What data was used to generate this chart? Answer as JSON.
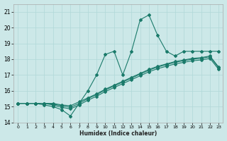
{
  "xlabel": "Humidex (Indice chaleur)",
  "bg_color": "#cce8e8",
  "grid_color": "#b0d8d8",
  "line_color": "#1a7a6a",
  "x_values": [
    0,
    1,
    2,
    3,
    4,
    5,
    6,
    7,
    8,
    9,
    10,
    11,
    12,
    13,
    14,
    15,
    16,
    17,
    18,
    19,
    20,
    21,
    22,
    23
  ],
  "line_jagged": [
    15.2,
    15.2,
    15.2,
    15.1,
    15.0,
    14.8,
    14.4,
    15.2,
    16.0,
    17.0,
    18.3,
    18.5,
    17.0,
    18.5,
    20.5,
    20.8,
    19.5,
    18.5,
    18.2,
    18.5,
    18.5,
    18.5,
    18.5,
    18.5
  ],
  "line_trend1": [
    15.2,
    15.2,
    15.2,
    15.2,
    15.2,
    15.1,
    15.05,
    15.3,
    15.55,
    15.8,
    16.1,
    16.35,
    16.6,
    16.85,
    17.1,
    17.35,
    17.55,
    17.7,
    17.85,
    17.95,
    18.05,
    18.1,
    18.2,
    17.5
  ],
  "line_trend2": [
    15.2,
    15.2,
    15.2,
    15.2,
    15.15,
    15.05,
    14.95,
    15.2,
    15.5,
    15.75,
    16.05,
    16.3,
    16.55,
    16.8,
    17.05,
    17.3,
    17.5,
    17.65,
    17.8,
    17.9,
    18.0,
    18.05,
    18.15,
    17.45
  ],
  "line_trend3": [
    15.2,
    15.2,
    15.2,
    15.2,
    15.1,
    14.95,
    14.85,
    15.1,
    15.4,
    15.65,
    15.95,
    16.2,
    16.45,
    16.7,
    16.95,
    17.2,
    17.4,
    17.55,
    17.7,
    17.8,
    17.9,
    17.95,
    18.05,
    17.35
  ],
  "ylim": [
    14.0,
    21.5
  ],
  "xlim": [
    -0.5,
    23.5
  ],
  "yticks": [
    14,
    15,
    16,
    17,
    18,
    19,
    20,
    21
  ],
  "xticks": [
    0,
    1,
    2,
    3,
    4,
    5,
    6,
    7,
    8,
    9,
    10,
    11,
    12,
    13,
    14,
    15,
    16,
    17,
    18,
    19,
    20,
    21,
    22,
    23
  ]
}
